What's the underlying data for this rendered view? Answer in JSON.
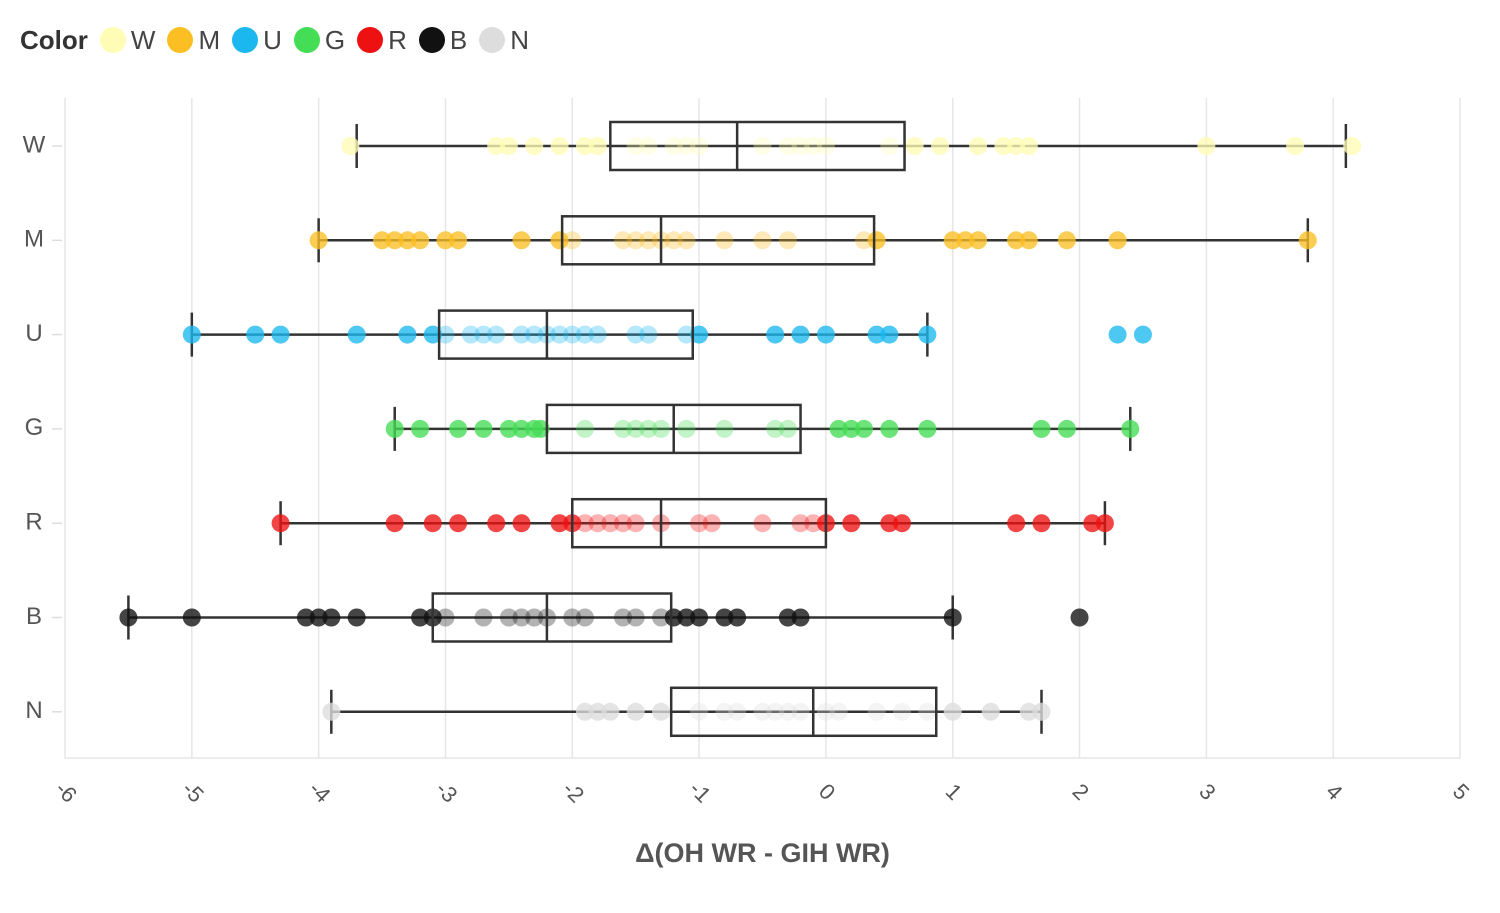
{
  "legend": {
    "title": "Color",
    "items": [
      {
        "label": "W",
        "color": "#fffdb5"
      },
      {
        "label": "M",
        "color": "#fbbf24"
      },
      {
        "label": "U",
        "color": "#1ab8ef"
      },
      {
        "label": "G",
        "color": "#44dd55"
      },
      {
        "label": "R",
        "color": "#ee1111"
      },
      {
        "label": "B",
        "color": "#111111"
      },
      {
        "label": "N",
        "color": "#dddddd"
      }
    ]
  },
  "chart_data": {
    "type": "boxplot",
    "orientation": "horizontal",
    "title": "",
    "xlabel": "Δ(OH WR - GIH WR)",
    "ylabel": "",
    "xlim": [
      -6,
      5
    ],
    "xticks": [
      "-6",
      "-5",
      "-4",
      "-3",
      "-2",
      "-1",
      "0",
      "1",
      "2",
      "3",
      "4",
      "5"
    ],
    "grid": true,
    "legend_position": "top-left",
    "categories": [
      "W",
      "M",
      "U",
      "G",
      "R",
      "B",
      "N"
    ],
    "series": [
      {
        "name": "W",
        "color": "#fffdb5",
        "whisker_low": -3.7,
        "q1": -1.7,
        "median": -0.7,
        "q3": 0.62,
        "whisker_high": 4.1,
        "points": [
          -3.75,
          -2.6,
          -2.5,
          -2.3,
          -2.1,
          -1.9,
          -1.8,
          -1.5,
          -1.4,
          -1.2,
          -1.1,
          -1.0,
          -0.5,
          -0.3,
          -0.2,
          -0.1,
          0.0,
          0.5,
          0.7,
          0.9,
          1.2,
          1.4,
          1.5,
          1.6,
          3.0,
          3.7,
          4.15
        ]
      },
      {
        "name": "M",
        "color": "#fbbf24",
        "whisker_low": -4.0,
        "q1": -2.08,
        "median": -1.3,
        "q3": 0.38,
        "whisker_high": 3.8,
        "points": [
          -4.0,
          -3.5,
          -3.4,
          -3.3,
          -3.2,
          -3.0,
          -2.9,
          -2.4,
          -2.1,
          -2.0,
          -1.6,
          -1.5,
          -1.4,
          -1.3,
          -1.2,
          -1.1,
          -0.8,
          -0.5,
          -0.3,
          0.3,
          0.4,
          1.0,
          1.1,
          1.2,
          1.5,
          1.6,
          1.9,
          2.3,
          3.8
        ]
      },
      {
        "name": "U",
        "color": "#1ab8ef",
        "whisker_low": -5.0,
        "q1": -3.05,
        "median": -2.2,
        "q3": -1.05,
        "whisker_high": 0.8,
        "points": [
          -5.0,
          -4.5,
          -4.3,
          -3.7,
          -3.3,
          -3.1,
          -3.0,
          -2.8,
          -2.7,
          -2.6,
          -2.4,
          -2.3,
          -2.2,
          -2.1,
          -2.0,
          -1.9,
          -1.8,
          -1.5,
          -1.4,
          -1.1,
          -1.0,
          -0.4,
          -0.2,
          0.0,
          0.4,
          0.5,
          0.8,
          2.3,
          2.5
        ]
      },
      {
        "name": "G",
        "color": "#44dd55",
        "whisker_low": -3.4,
        "q1": -2.2,
        "median": -1.2,
        "q3": -0.2,
        "whisker_high": 2.4,
        "points": [
          -3.4,
          -3.2,
          -2.9,
          -2.7,
          -2.5,
          -2.4,
          -2.3,
          -2.25,
          -1.9,
          -1.6,
          -1.5,
          -1.4,
          -1.3,
          -1.1,
          -0.8,
          -0.4,
          -0.3,
          0.1,
          0.2,
          0.3,
          0.5,
          0.8,
          1.7,
          1.9,
          2.4
        ]
      },
      {
        "name": "R",
        "color": "#ee1111",
        "whisker_low": -4.3,
        "q1": -2.0,
        "median": -1.3,
        "q3": 0.0,
        "whisker_high": 2.2,
        "points": [
          -4.3,
          -3.4,
          -3.1,
          -2.9,
          -2.6,
          -2.4,
          -2.1,
          -2.0,
          -1.9,
          -1.8,
          -1.7,
          -1.6,
          -1.5,
          -1.3,
          -1.0,
          -0.9,
          -0.5,
          -0.2,
          -0.1,
          0.0,
          0.2,
          0.5,
          0.6,
          1.5,
          1.7,
          2.1,
          2.2
        ]
      },
      {
        "name": "B",
        "color": "#111111",
        "whisker_low": -5.5,
        "q1": -3.1,
        "median": -2.2,
        "q3": -1.22,
        "whisker_high": 1.0,
        "points": [
          -5.5,
          -5.0,
          -4.1,
          -4.0,
          -3.9,
          -3.7,
          -3.2,
          -3.1,
          -3.0,
          -2.7,
          -2.5,
          -2.4,
          -2.3,
          -2.2,
          -2.0,
          -1.9,
          -1.6,
          -1.5,
          -1.3,
          -1.2,
          -1.1,
          -1.0,
          -0.8,
          -0.7,
          -0.3,
          -0.2,
          1.0,
          2.0
        ]
      },
      {
        "name": "N",
        "color": "#dddddd",
        "whisker_low": -3.9,
        "q1": -1.22,
        "median": -0.1,
        "q3": 0.87,
        "whisker_high": 1.7,
        "points": [
          -3.9,
          -1.9,
          -1.8,
          -1.7,
          -1.5,
          -1.3,
          -1.0,
          -0.8,
          -0.7,
          -0.5,
          -0.4,
          -0.3,
          -0.2,
          0.0,
          0.1,
          0.4,
          0.6,
          0.8,
          1.0,
          1.3,
          1.6,
          1.7
        ]
      }
    ]
  }
}
